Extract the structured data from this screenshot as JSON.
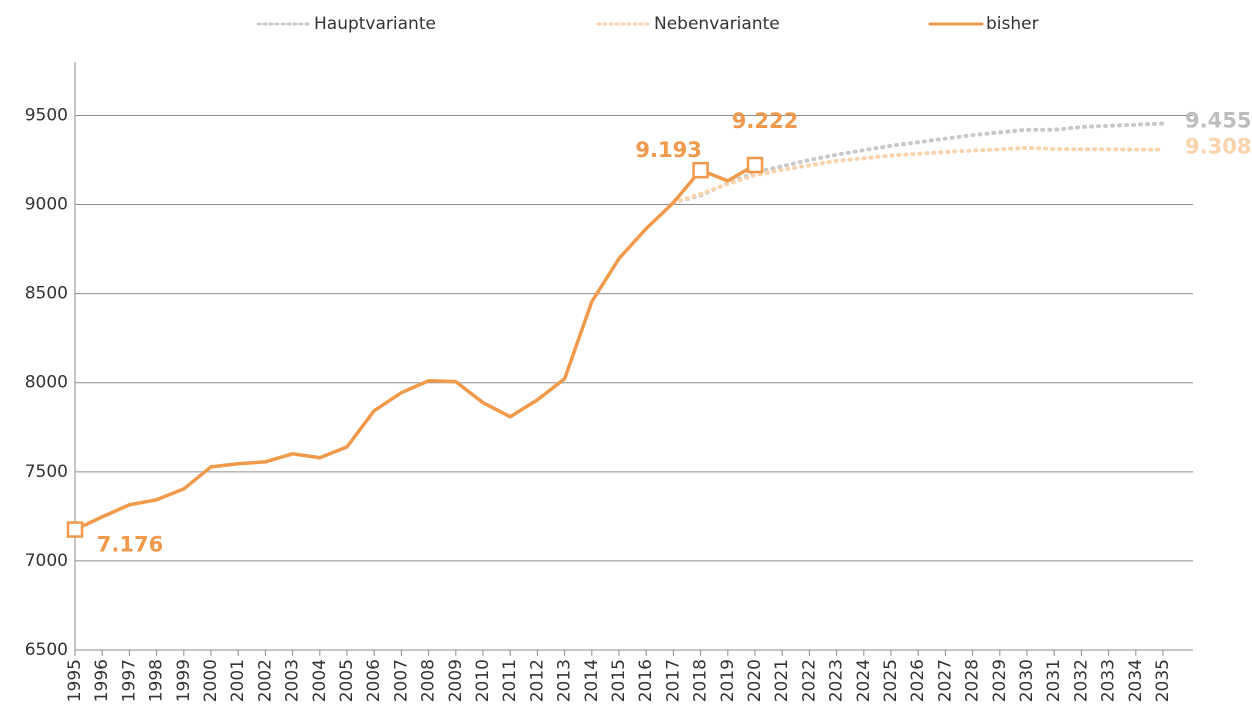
{
  "chart_data": {
    "type": "line",
    "x": [
      1995,
      1996,
      1997,
      1998,
      1999,
      2000,
      2001,
      2002,
      2003,
      2004,
      2005,
      2006,
      2007,
      2008,
      2009,
      2010,
      2011,
      2012,
      2013,
      2014,
      2015,
      2016,
      2017,
      2018,
      2019,
      2020,
      2021,
      2022,
      2023,
      2024,
      2025,
      2026,
      2027,
      2028,
      2029,
      2030,
      2031,
      2032,
      2033,
      2034,
      2035
    ],
    "series": [
      {
        "name": "Hauptvariante",
        "color": "#c8c8c8",
        "style": "dotted",
        "values": [
          null,
          null,
          null,
          null,
          null,
          null,
          null,
          null,
          null,
          null,
          null,
          null,
          null,
          null,
          null,
          null,
          null,
          null,
          null,
          null,
          null,
          null,
          9011,
          9051,
          9120,
          9180,
          9215,
          9250,
          9280,
          9305,
          9330,
          9350,
          9370,
          9390,
          9405,
          9420,
          9420,
          9435,
          9442,
          9448,
          9455
        ],
        "value_labels": [
          null,
          null,
          null,
          null,
          null,
          null,
          null,
          null,
          null,
          null,
          null,
          null,
          null,
          null,
          null,
          null,
          null,
          null,
          null,
          null,
          null,
          null,
          null,
          null,
          null,
          null,
          null,
          null,
          null,
          null,
          null,
          null,
          null,
          null,
          null,
          null,
          null,
          null,
          null,
          null,
          "9.455"
        ]
      },
      {
        "name": "Nebenvariante",
        "color": "#fad2ac",
        "style": "dotted",
        "values": [
          null,
          null,
          null,
          null,
          null,
          null,
          null,
          null,
          null,
          null,
          null,
          null,
          null,
          null,
          null,
          null,
          null,
          null,
          null,
          null,
          null,
          null,
          9011,
          9060,
          9115,
          9165,
          9195,
          9220,
          9245,
          9260,
          9275,
          9285,
          9295,
          9303,
          9310,
          9318,
          9312,
          9310,
          9310,
          9309,
          9308
        ],
        "value_labels": [
          null,
          null,
          null,
          null,
          null,
          null,
          null,
          null,
          null,
          null,
          null,
          null,
          null,
          null,
          null,
          null,
          null,
          null,
          null,
          null,
          null,
          null,
          null,
          null,
          null,
          null,
          null,
          null,
          null,
          null,
          null,
          null,
          null,
          null,
          null,
          null,
          null,
          null,
          null,
          null,
          "9.308"
        ]
      },
      {
        "name": "bisher",
        "color": "#f0994a",
        "style": "solid",
        "values": [
          7176,
          7247,
          7315,
          7343,
          7404,
          7528,
          7545,
          7556,
          7601,
          7579,
          7640,
          7843,
          7944,
          8011,
          8006,
          7888,
          7809,
          7904,
          8022,
          8455,
          8697,
          8865,
          9011,
          9193,
          9133,
          9222,
          null,
          null,
          null,
          null,
          null,
          null,
          null,
          null,
          null,
          null,
          null,
          null,
          null,
          null,
          null
        ],
        "value_labels": [
          "7.176",
          null,
          null,
          null,
          null,
          null,
          null,
          null,
          null,
          null,
          null,
          null,
          null,
          null,
          null,
          null,
          null,
          null,
          null,
          null,
          null,
          null,
          null,
          "9.193",
          null,
          "9.222",
          null,
          null,
          null,
          null,
          null,
          null,
          null,
          null,
          null,
          null,
          null,
          null,
          null,
          null,
          null
        ]
      }
    ],
    "xlim": [
      1995,
      2035
    ],
    "xticks": [
      1995,
      1996,
      1997,
      1998,
      1999,
      2000,
      2001,
      2002,
      2003,
      2004,
      2005,
      2006,
      2007,
      2008,
      2009,
      2010,
      2011,
      2012,
      2013,
      2014,
      2015,
      2016,
      2017,
      2018,
      2019,
      2020,
      2021,
      2022,
      2023,
      2024,
      2025,
      2026,
      2027,
      2028,
      2029,
      2030,
      2031,
      2032,
      2033,
      2034,
      2035
    ],
    "ylim": [
      6500,
      9800
    ],
    "yticks": [
      6500,
      7000,
      7500,
      8000,
      8500,
      9000,
      9500
    ],
    "grid": true,
    "legend": "top"
  }
}
